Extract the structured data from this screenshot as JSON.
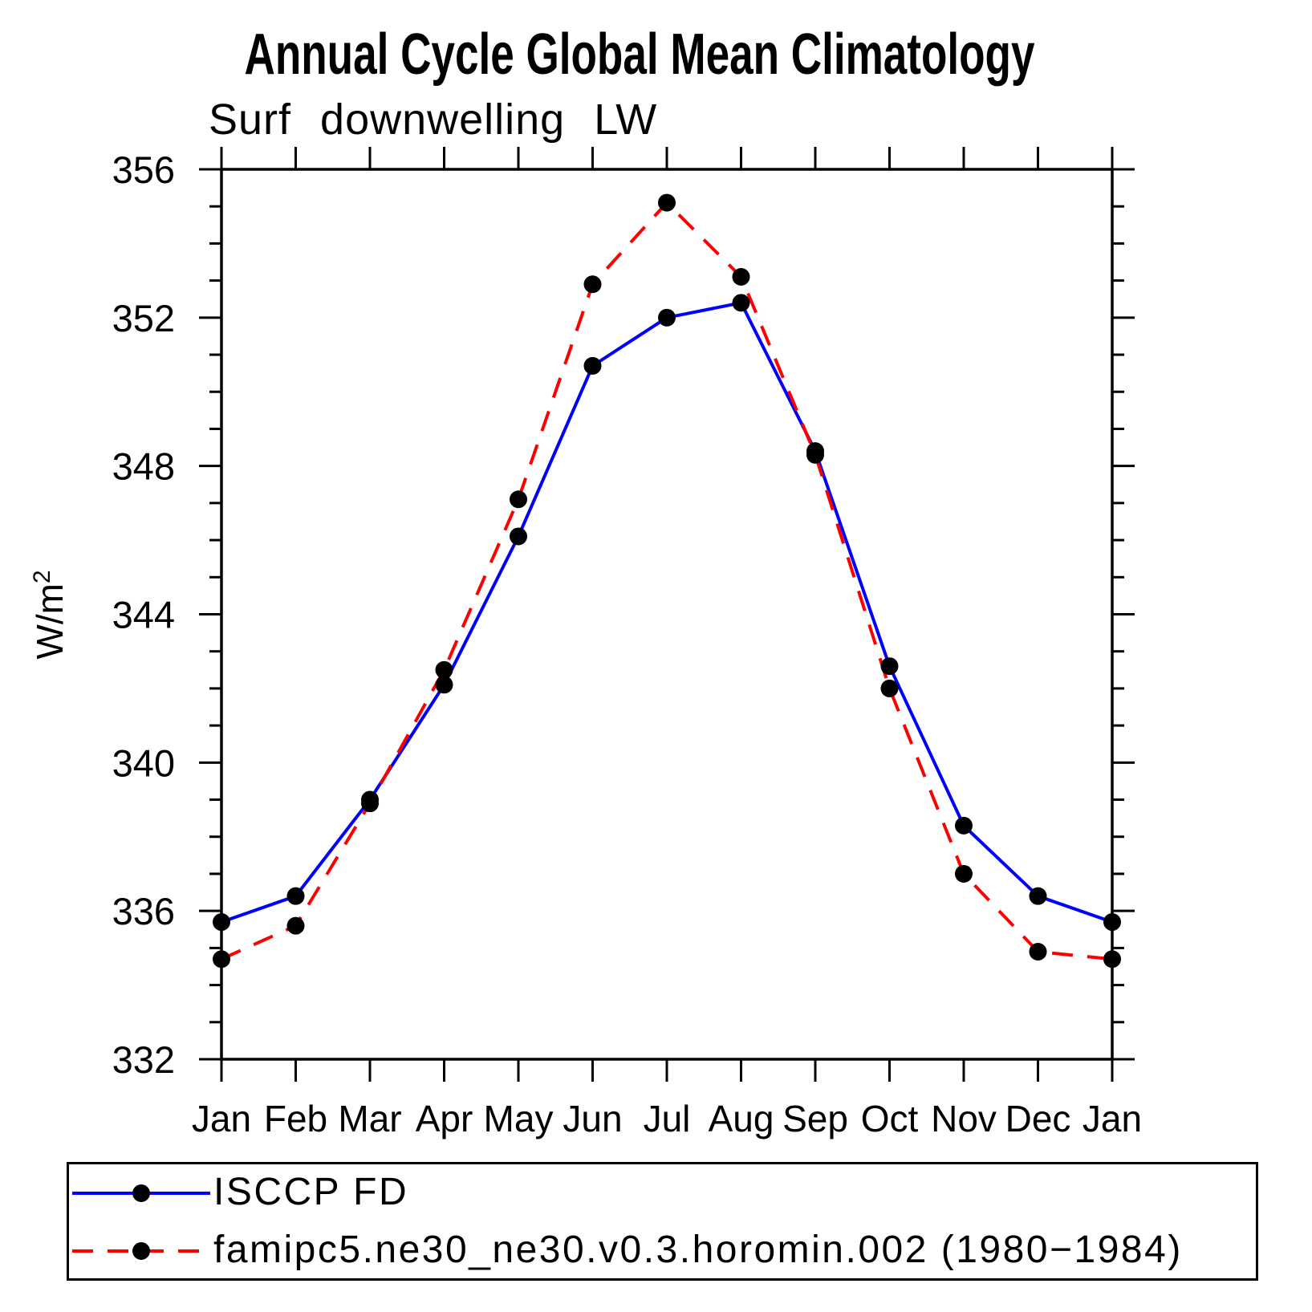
{
  "chart_data": {
    "type": "line",
    "title": "Annual Cycle Global Mean Climatology",
    "subtitle": "Surf downwelling LW",
    "xlabel": "",
    "ylabel": "W/m²",
    "x_categories": [
      "Jan",
      "Feb",
      "Mar",
      "Apr",
      "May",
      "Jun",
      "Jul",
      "Aug",
      "Sep",
      "Oct",
      "Nov",
      "Dec",
      "Jan"
    ],
    "ylim": [
      332,
      356
    ],
    "ytick_major": [
      332,
      336,
      340,
      344,
      348,
      352,
      356
    ],
    "ytick_minor_step": 1,
    "grid": false,
    "legend_position": "bottom",
    "axis_color": "#000000",
    "series": [
      {
        "name": "ISCCP FD",
        "color": "#0000ff",
        "line_style": "solid",
        "marker": "filled-circle",
        "marker_color": "#000000",
        "values": [
          335.7,
          336.4,
          339.0,
          342.1,
          346.1,
          350.7,
          352.0,
          352.4,
          348.4,
          342.6,
          338.3,
          336.4,
          335.7
        ]
      },
      {
        "name": "famipc5.ne30_ne30.v0.3.horomin.002 (1980−1984)",
        "color": "#ff0000",
        "line_style": "dashed",
        "marker": "filled-circle",
        "marker_color": "#000000",
        "values": [
          334.7,
          335.6,
          338.9,
          342.5,
          347.1,
          352.9,
          355.1,
          353.1,
          348.3,
          342.0,
          337.0,
          334.9,
          334.7
        ]
      }
    ]
  }
}
